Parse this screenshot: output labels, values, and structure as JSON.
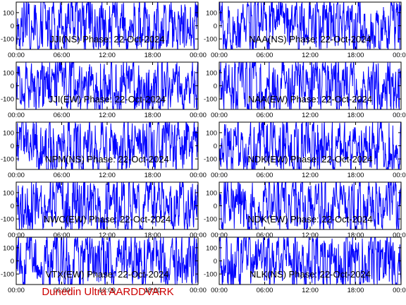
{
  "footer": {
    "text": "Dunedin Ultra AARDDVARK",
    "color": "#cc0000"
  },
  "style": {
    "trace_color": "#0000ff",
    "frame_color": "#000000",
    "background": "#ffffff"
  },
  "chart_data": [
    {
      "type": "line",
      "title": "JJI(NS) Phase: 22-Oct-2024",
      "x_ticks": [
        "00:00",
        "06:00",
        "12:00",
        "18:00",
        "00:00"
      ],
      "xlim": [
        0,
        24
      ],
      "ylim": [
        -180,
        180
      ],
      "y_ticks": [
        100,
        0,
        -100
      ],
      "series": [
        {
          "color": "#0000ff",
          "values": []
        }
      ]
    },
    {
      "type": "line",
      "title": "NAA(NS) Phase: 22-Oct-2024",
      "x_ticks": [
        "00:00",
        "06:00",
        "12:00",
        "18:00",
        "00:00"
      ],
      "xlim": [
        0,
        24
      ],
      "ylim": [
        -180,
        180
      ],
      "y_ticks": [
        100,
        0,
        -100
      ],
      "series": [
        {
          "color": "#0000ff",
          "values": []
        }
      ]
    },
    {
      "type": "line",
      "title": "JJI(EW) Phase: 22-Oct-2024",
      "x_ticks": [
        "00:00",
        "06:00",
        "12:00",
        "18:00",
        "00:00"
      ],
      "xlim": [
        0,
        24
      ],
      "ylim": [
        -180,
        180
      ],
      "y_ticks": [
        100,
        0,
        -100
      ],
      "series": [
        {
          "color": "#0000ff",
          "values": []
        }
      ]
    },
    {
      "type": "line",
      "title": "NAA(EW) Phase: 22-Oct-2024",
      "x_ticks": [
        "00:00",
        "06:00",
        "12:00",
        "18:00",
        "00:00"
      ],
      "xlim": [
        0,
        24
      ],
      "ylim": [
        -180,
        180
      ],
      "y_ticks": [
        100,
        0,
        -100
      ],
      "series": [
        {
          "color": "#0000ff",
          "values": []
        }
      ]
    },
    {
      "type": "line",
      "title": "NPM(NS) Phase: 22-Oct-2024",
      "x_ticks": [
        "00:00",
        "06:00",
        "12:00",
        "18:00",
        "00:00"
      ],
      "xlim": [
        0,
        24
      ],
      "ylim": [
        -180,
        180
      ],
      "y_ticks": [
        100,
        0,
        -100
      ],
      "series": [
        {
          "color": "#0000ff",
          "values": []
        }
      ]
    },
    {
      "type": "line",
      "title": "NDK(EW) Phase: 22-Oct-2024",
      "x_ticks": [
        "00:00",
        "06:00",
        "12:00",
        "18:00",
        "00:00"
      ],
      "xlim": [
        0,
        24
      ],
      "ylim": [
        -180,
        180
      ],
      "y_ticks": [
        100,
        0,
        -100
      ],
      "series": [
        {
          "color": "#0000ff",
          "values": []
        }
      ]
    },
    {
      "type": "line",
      "title": "NWC(EW) Phase: 22-Oct-2024",
      "x_ticks": [
        "00:00",
        "06:00",
        "12:00",
        "18:00",
        "00:00"
      ],
      "xlim": [
        0,
        24
      ],
      "ylim": [
        -180,
        180
      ],
      "y_ticks": [
        100,
        0,
        -100
      ],
      "series": [
        {
          "color": "#0000ff",
          "values": []
        }
      ]
    },
    {
      "type": "line",
      "title": "NDK(EW) Phase: 22-Oct-2024",
      "x_ticks": [
        "00:00",
        "06:00",
        "12:00",
        "18:00",
        "00:00"
      ],
      "xlim": [
        0,
        24
      ],
      "ylim": [
        -180,
        180
      ],
      "y_ticks": [
        100,
        0,
        -100
      ],
      "series": [
        {
          "color": "#0000ff",
          "values": []
        }
      ]
    },
    {
      "type": "line",
      "title": "VTX(EW) Phase: 22-Oct-2024",
      "x_ticks": [
        "00:00",
        "06:00",
        "12:00",
        "18:00",
        "00:00"
      ],
      "xlim": [
        0,
        24
      ],
      "ylim": [
        -180,
        180
      ],
      "y_ticks": [
        100,
        0,
        -100
      ],
      "series": [
        {
          "color": "#0000ff",
          "values": []
        }
      ]
    },
    {
      "type": "line",
      "title": "NLK(NS) Phase: 22-Oct-2024",
      "x_ticks": [
        "00:00",
        "06:00",
        "12:00",
        "18:00",
        "00:00"
      ],
      "xlim": [
        0,
        24
      ],
      "ylim": [
        -180,
        180
      ],
      "y_ticks": [
        100,
        0,
        -100
      ],
      "series": [
        {
          "color": "#0000ff",
          "values": []
        }
      ]
    }
  ]
}
